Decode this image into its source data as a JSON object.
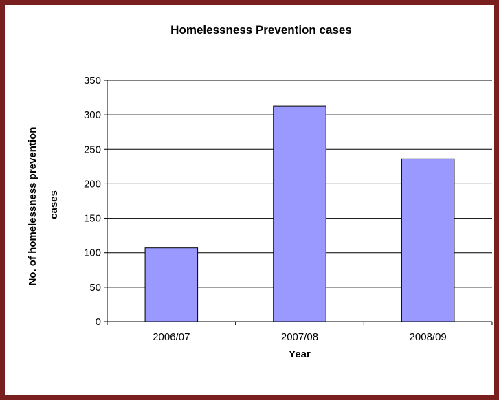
{
  "chart_data": {
    "type": "bar",
    "title": "Homelessness Prevention cases",
    "xlabel": "Year",
    "ylabel": "No. of homelessness prevention cases",
    "ylabel_lines": [
      "No. of homelessness prevention",
      "cases"
    ],
    "categories": [
      "2006/07",
      "2007/08",
      "2008/09"
    ],
    "values": [
      107,
      313,
      236
    ],
    "ylim": [
      0,
      350
    ],
    "yticks": [
      "0",
      "50",
      "100",
      "150",
      "200",
      "250",
      "300",
      "350"
    ],
    "grid": true,
    "legend": "none",
    "colors": {
      "bar_fill": "#9999ff",
      "bar_stroke": "#000000",
      "frame": "#7a1f1f",
      "grid": "#000000"
    }
  }
}
